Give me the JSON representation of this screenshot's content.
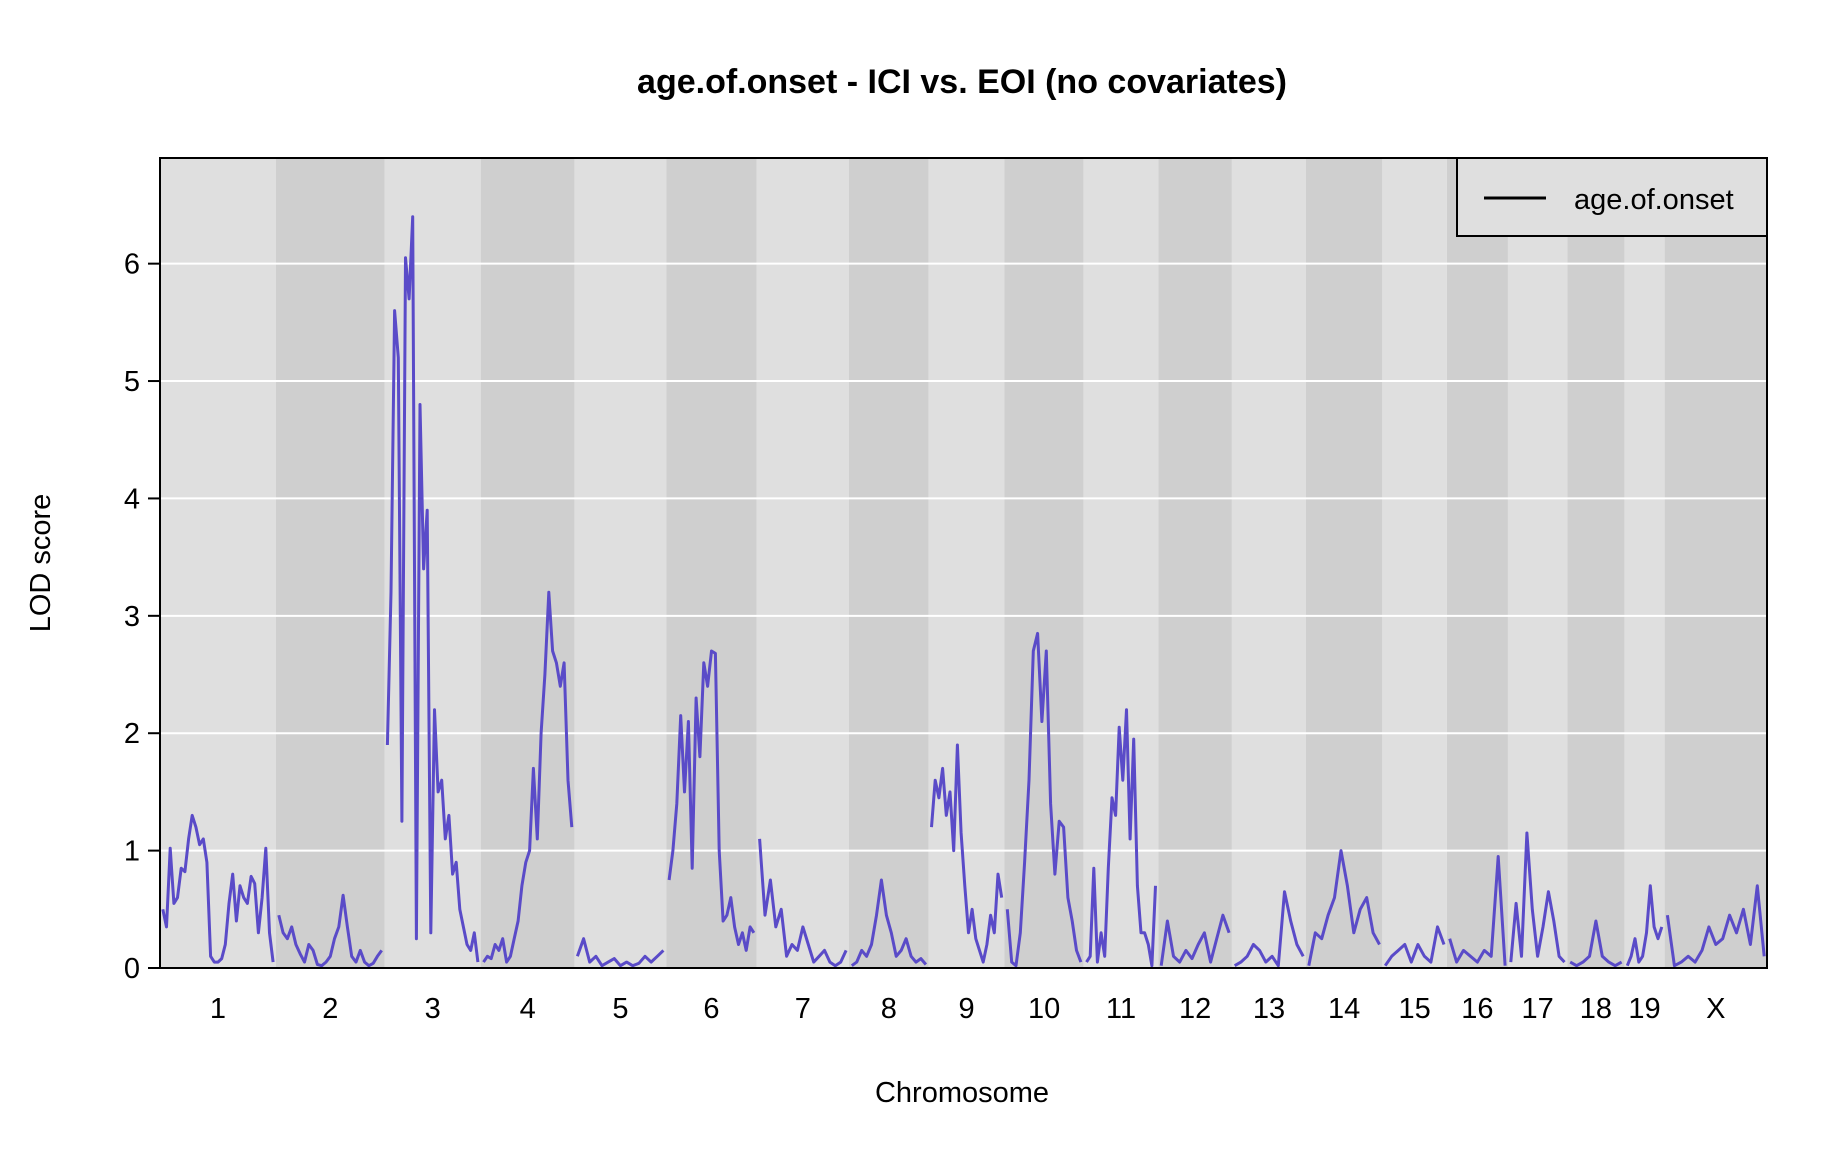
{
  "chart_data": {
    "type": "line",
    "title": "age.of.onset - ICI vs. EOI (no covariates)",
    "xlabel": "Chromosome",
    "ylabel": "LOD score",
    "ylim": [
      0,
      6.9
    ],
    "yticks": [
      0,
      1,
      2,
      3,
      4,
      5,
      6
    ],
    "grid": true,
    "legend_position": "top-right",
    "line_color": "#5a4bc8",
    "band_colors": [
      "#dfdfdf",
      "#cfcfcf"
    ],
    "chromosomes": [
      "1",
      "2",
      "3",
      "4",
      "5",
      "6",
      "7",
      "8",
      "9",
      "10",
      "11",
      "12",
      "13",
      "14",
      "15",
      "16",
      "17",
      "18",
      "19",
      "X"
    ],
    "series": [
      {
        "name": "age.of.onset",
        "legend_swatch_color": "#000000",
        "chromosome_data": [
          {
            "chr": "1",
            "length": 195,
            "lod": [
              0.5,
              0.35,
              1.02,
              0.55,
              0.6,
              0.85,
              0.82,
              1.1,
              1.3,
              1.2,
              1.05,
              1.1,
              0.9,
              0.1,
              0.05,
              0.05,
              0.08,
              0.2,
              0.55,
              0.8,
              0.4,
              0.7,
              0.6,
              0.55,
              0.78,
              0.72,
              0.3,
              0.6,
              1.02,
              0.3,
              0.05
            ]
          },
          {
            "chr": "2",
            "length": 182,
            "lod": [
              0.45,
              0.3,
              0.25,
              0.35,
              0.2,
              0.12,
              0.05,
              0.2,
              0.15,
              0.03,
              0.02,
              0.05,
              0.1,
              0.25,
              0.35,
              0.62,
              0.35,
              0.1,
              0.05,
              0.15,
              0.05,
              0.02,
              0.04,
              0.1,
              0.15
            ]
          },
          {
            "chr": "3",
            "length": 160,
            "lod": [
              1.9,
              3.2,
              5.6,
              5.2,
              1.25,
              6.05,
              5.7,
              6.4,
              0.25,
              4.8,
              3.4,
              3.9,
              0.3,
              2.2,
              1.5,
              1.6,
              1.1,
              1.3,
              0.8,
              0.9,
              0.5,
              0.35,
              0.2,
              0.15,
              0.3,
              0.05
            ]
          },
          {
            "chr": "4",
            "length": 156,
            "lod": [
              0.05,
              0.1,
              0.08,
              0.2,
              0.15,
              0.25,
              0.05,
              0.1,
              0.25,
              0.4,
              0.7,
              0.9,
              1.0,
              1.7,
              1.1,
              2.0,
              2.5,
              3.2,
              2.7,
              2.6,
              2.4,
              2.6,
              1.6,
              1.2
            ]
          },
          {
            "chr": "5",
            "length": 152,
            "lod": [
              0.1,
              0.25,
              0.05,
              0.1,
              0.02,
              0.05,
              0.08,
              0.02,
              0.05,
              0.02,
              0.04,
              0.1,
              0.05,
              0.1,
              0.15
            ]
          },
          {
            "chr": "6",
            "length": 150,
            "lod": [
              0.75,
              1.0,
              1.4,
              2.15,
              1.5,
              2.1,
              0.85,
              2.3,
              1.8,
              2.6,
              2.4,
              2.7,
              2.68,
              1.0,
              0.4,
              0.45,
              0.6,
              0.35,
              0.2,
              0.3,
              0.15,
              0.35,
              0.3
            ]
          },
          {
            "chr": "7",
            "length": 153,
            "lod": [
              1.1,
              0.45,
              0.75,
              0.35,
              0.5,
              0.1,
              0.2,
              0.15,
              0.35,
              0.2,
              0.05,
              0.1,
              0.15,
              0.05,
              0.02,
              0.05,
              0.15
            ]
          },
          {
            "chr": "8",
            "length": 131,
            "lod": [
              0.02,
              0.05,
              0.15,
              0.1,
              0.2,
              0.45,
              0.75,
              0.45,
              0.3,
              0.1,
              0.15,
              0.25,
              0.1,
              0.05,
              0.08,
              0.03
            ]
          },
          {
            "chr": "9",
            "length": 124,
            "lod": [
              1.2,
              1.6,
              1.45,
              1.7,
              1.3,
              1.5,
              1.0,
              1.9,
              1.15,
              0.7,
              0.3,
              0.5,
              0.25,
              0.15,
              0.05,
              0.2,
              0.45,
              0.3,
              0.8,
              0.6
            ]
          },
          {
            "chr": "10",
            "length": 130,
            "lod": [
              0.5,
              0.05,
              0.02,
              0.3,
              0.9,
              1.6,
              2.7,
              2.85,
              2.1,
              2.7,
              1.4,
              0.8,
              1.25,
              1.2,
              0.6,
              0.4,
              0.15,
              0.05
            ]
          },
          {
            "chr": "11",
            "length": 122,
            "lod": [
              0.05,
              0.1,
              0.85,
              0.05,
              0.3,
              0.1,
              0.85,
              1.45,
              1.3,
              2.05,
              1.6,
              2.2,
              1.1,
              1.95,
              0.7,
              0.3,
              0.3,
              0.2,
              0.02,
              0.7
            ]
          },
          {
            "chr": "12",
            "length": 120,
            "lod": [
              0.02,
              0.4,
              0.1,
              0.05,
              0.15,
              0.08,
              0.2,
              0.3,
              0.05,
              0.25,
              0.45,
              0.3
            ]
          },
          {
            "chr": "13",
            "length": 121,
            "lod": [
              0.02,
              0.05,
              0.1,
              0.2,
              0.15,
              0.05,
              0.1,
              0.02,
              0.65,
              0.4,
              0.2,
              0.1
            ]
          },
          {
            "chr": "14",
            "length": 125,
            "lod": [
              0.02,
              0.3,
              0.25,
              0.45,
              0.6,
              1.0,
              0.7,
              0.3,
              0.5,
              0.6,
              0.3,
              0.2
            ]
          },
          {
            "chr": "15",
            "length": 104,
            "lod": [
              0.02,
              0.1,
              0.15,
              0.2,
              0.05,
              0.2,
              0.1,
              0.05,
              0.35,
              0.2
            ]
          },
          {
            "chr": "16",
            "length": 98,
            "lod": [
              0.25,
              0.05,
              0.15,
              0.1,
              0.05,
              0.15,
              0.1,
              0.95,
              0.02
            ]
          },
          {
            "chr": "17",
            "length": 95,
            "lod": [
              0.05,
              0.55,
              0.1,
              1.15,
              0.5,
              0.1,
              0.35,
              0.65,
              0.4,
              0.1,
              0.05
            ]
          },
          {
            "chr": "18",
            "length": 91,
            "lod": [
              0.05,
              0.02,
              0.05,
              0.1,
              0.4,
              0.1,
              0.05,
              0.02,
              0.05
            ]
          },
          {
            "chr": "19",
            "length": 61,
            "lod": [
              0.02,
              0.1,
              0.25,
              0.05,
              0.1,
              0.3,
              0.7,
              0.35,
              0.25,
              0.35
            ]
          },
          {
            "chr": "X",
            "length": 171,
            "lod": [
              0.45,
              0.02,
              0.05,
              0.1,
              0.05,
              0.15,
              0.35,
              0.2,
              0.25,
              0.45,
              0.3,
              0.5,
              0.2,
              0.7,
              0.1
            ]
          }
        ]
      }
    ]
  }
}
